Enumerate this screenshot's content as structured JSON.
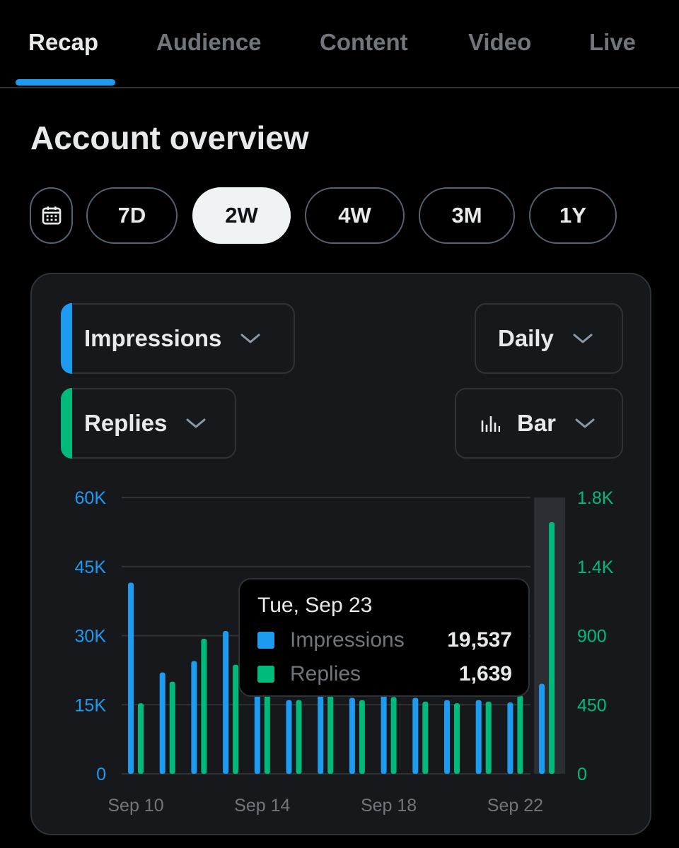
{
  "tabs": [
    {
      "label": "Recap",
      "active": true
    },
    {
      "label": "Audience",
      "active": false
    },
    {
      "label": "Content",
      "active": false
    },
    {
      "label": "Video",
      "active": false
    },
    {
      "label": "Live",
      "active": false
    }
  ],
  "page_title": "Account overview",
  "ranges": {
    "calendar_icon": "calendar-icon",
    "options": [
      "7D",
      "2W",
      "4W",
      "3M",
      "1Y"
    ],
    "selected": "2W"
  },
  "controls": {
    "metric_primary": "Impressions",
    "metric_secondary": "Replies",
    "interval": "Daily",
    "chart_kind": "Bar",
    "chart_kind_icon": "bar-chart-icon"
  },
  "colors": {
    "impressions": "#1d9bf0",
    "replies": "#00ba7c"
  },
  "tooltip": {
    "date": "Tue, Sep 23",
    "impressions_label": "Impressions",
    "impressions_value": "19,537",
    "replies_label": "Replies",
    "replies_value": "1,639"
  },
  "chart_data": {
    "type": "bar",
    "x": [
      "Sep 10",
      "Sep 11",
      "Sep 12",
      "Sep 13",
      "Sep 14",
      "Sep 15",
      "Sep 16",
      "Sep 17",
      "Sep 18",
      "Sep 19",
      "Sep 20",
      "Sep 21",
      "Sep 22",
      "Sep 23"
    ],
    "x_tick_labels": [
      "Sep 10",
      "Sep 14",
      "Sep 18",
      "Sep 22"
    ],
    "highlighted": "Sep 23",
    "left_axis": {
      "ticks": [
        "0",
        "15K",
        "30K",
        "45K",
        "60K"
      ],
      "range": [
        0,
        60000
      ]
    },
    "right_axis": {
      "ticks": [
        "0",
        "450",
        "900",
        "1.4K",
        "1.8K"
      ],
      "range": [
        0,
        1800
      ]
    },
    "series": [
      {
        "name": "Impressions",
        "axis": "left",
        "values": [
          41500,
          22000,
          24500,
          31000,
          24500,
          16000,
          18000,
          16500,
          17500,
          16500,
          16000,
          16000,
          15500,
          19537
        ]
      },
      {
        "name": "Replies",
        "axis": "right",
        "values": [
          460,
          600,
          880,
          710,
          540,
          480,
          520,
          480,
          500,
          470,
          460,
          470,
          510,
          1639
        ]
      }
    ],
    "grid": true
  }
}
